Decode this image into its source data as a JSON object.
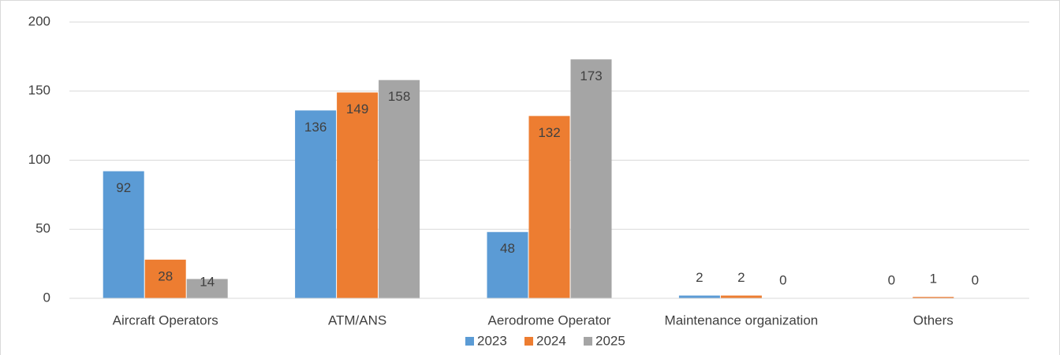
{
  "chart_data": {
    "type": "bar",
    "categories": [
      "Aircraft Operators",
      "ATM/ANS",
      "Aerodrome Operator",
      "Maintenance organization",
      "Others"
    ],
    "series": [
      {
        "name": "2023",
        "color": "#5b9bd5",
        "values": [
          92,
          136,
          48,
          2,
          0
        ]
      },
      {
        "name": "2024",
        "color": "#ed7d31",
        "values": [
          28,
          149,
          132,
          2,
          1
        ]
      },
      {
        "name": "2025",
        "color": "#a5a5a5",
        "values": [
          14,
          158,
          173,
          0,
          0
        ]
      }
    ],
    "ylim": [
      0,
      200
    ],
    "yticks": [
      0,
      50,
      100,
      150,
      200
    ],
    "grid": true,
    "legend": "bottom"
  }
}
